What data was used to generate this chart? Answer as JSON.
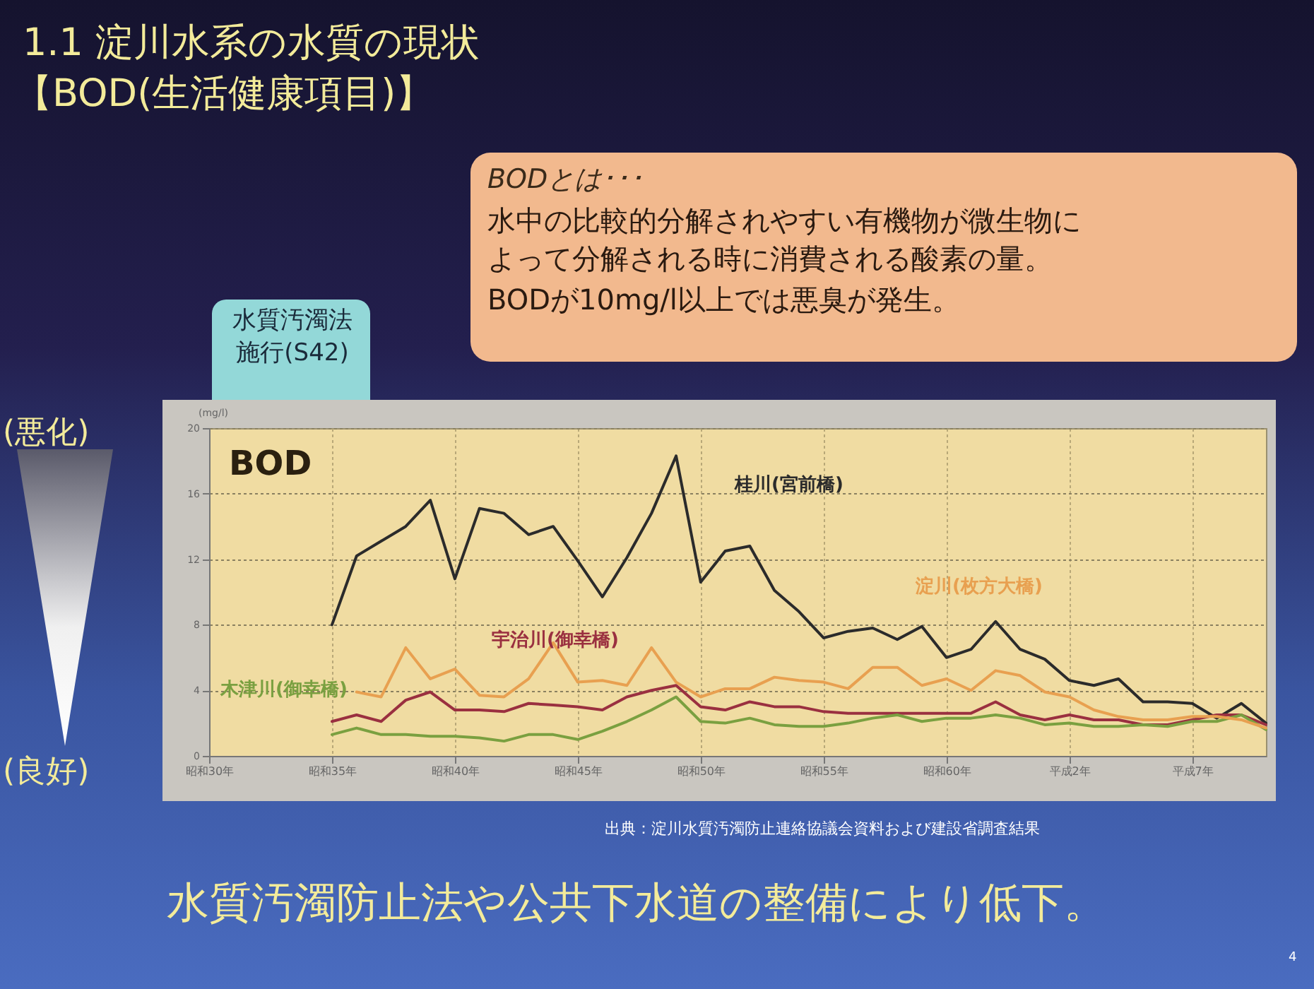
{
  "chart_data": {
    "type": "line",
    "title": "1.1 淀川水系の水質の現状",
    "subtitle": "【BOD(生活健康項目)】",
    "ylabel": "(mg/l)",
    "annotations": [
      "BODとは･･･",
      "水中の比較的分解されやすい有機物が微生物によって分解される時に消費される酸素の量。",
      "BODが10mg/l以上では悪臭が発生。",
      "水質汚濁法施行(S42)",
      "(悪化)",
      "(良好)",
      "BOD",
      "出典：淀川水質汚濁防止連絡協議会資料および建設省調査結果",
      "水質汚濁防止法や公共下水道の整備により低下。",
      "4"
    ],
    "categories": [
      "昭和30年",
      null,
      null,
      null,
      null,
      "昭和35年",
      null,
      null,
      null,
      null,
      "昭和40年",
      null,
      null,
      null,
      null,
      "昭和45年",
      null,
      null,
      null,
      null,
      "昭和50年",
      null,
      null,
      null,
      null,
      "昭和55年",
      null,
      null,
      null,
      null,
      "昭和60年",
      null,
      null,
      null,
      null,
      "平成2年",
      null,
      null,
      null,
      null,
      "平成7年",
      null,
      null,
      null
    ],
    "series": [
      {
        "name": "桂川(宮前橋)",
        "color": "#2b2b2b",
        "values": [
          null,
          null,
          null,
          null,
          null,
          8.0,
          12.2,
          13.1,
          14.0,
          15.6,
          10.8,
          15.1,
          14.8,
          13.5,
          14.0,
          11.9,
          9.7,
          12.1,
          14.8,
          18.3,
          10.6,
          12.5,
          12.8,
          10.1,
          8.8,
          7.2,
          7.6,
          7.8,
          7.1,
          7.9,
          6.0,
          6.5,
          8.2,
          6.5,
          5.9,
          4.6,
          4.3,
          4.7,
          3.3,
          3.3,
          3.2,
          2.3,
          3.2,
          2.0
        ]
      },
      {
        "name": "宇治川(御幸橋)",
        "color": "#9a3040",
        "values": [
          null,
          null,
          null,
          null,
          null,
          2.1,
          2.5,
          2.1,
          3.4,
          3.9,
          2.8,
          2.8,
          2.7,
          3.2,
          3.1,
          3.0,
          2.8,
          3.6,
          4.0,
          4.3,
          3.0,
          2.8,
          3.3,
          3.0,
          3.0,
          2.7,
          2.6,
          2.6,
          2.6,
          2.6,
          2.6,
          2.6,
          3.3,
          2.5,
          2.2,
          2.5,
          2.2,
          2.2,
          1.9,
          1.9,
          2.2,
          2.5,
          2.5,
          1.9
        ]
      },
      {
        "name": "木津川(御幸橋)",
        "color": "#7aa040",
        "values": [
          null,
          null,
          null,
          null,
          null,
          1.3,
          1.7,
          1.3,
          1.3,
          1.2,
          1.2,
          1.1,
          0.9,
          1.3,
          1.3,
          1.0,
          1.5,
          2.1,
          2.8,
          3.6,
          2.1,
          2.0,
          2.3,
          1.9,
          1.8,
          1.8,
          2.0,
          2.3,
          2.5,
          2.1,
          2.3,
          2.3,
          2.5,
          2.3,
          1.9,
          2.0,
          1.8,
          1.8,
          1.9,
          1.8,
          2.1,
          2.1,
          2.5,
          1.6
        ]
      },
      {
        "name": "淀川(枚方大橋)",
        "color": "#e8a050",
        "values": [
          null,
          null,
          null,
          null,
          null,
          null,
          3.9,
          3.6,
          6.6,
          4.7,
          5.3,
          3.7,
          3.6,
          4.7,
          6.9,
          4.5,
          4.6,
          4.3,
          6.6,
          4.5,
          3.6,
          4.1,
          4.1,
          4.8,
          4.6,
          4.5,
          4.1,
          5.4,
          5.4,
          4.3,
          4.7,
          4.0,
          5.2,
          4.9,
          3.9,
          3.6,
          2.8,
          2.4,
          2.2,
          2.2,
          2.4,
          2.4,
          2.2,
          1.7
        ]
      }
    ],
    "ylim": [
      0,
      20
    ],
    "yticks": [
      0,
      4,
      8,
      12,
      16,
      20
    ],
    "grid": true,
    "line_style": "solid",
    "marker": "none"
  }
}
